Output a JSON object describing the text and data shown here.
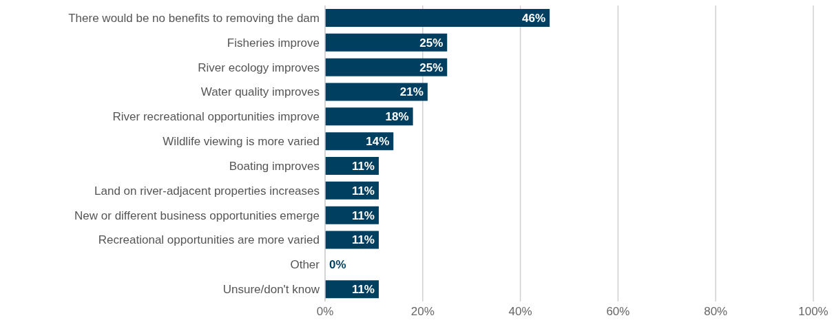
{
  "chart_data": {
    "type": "bar",
    "orientation": "horizontal",
    "categories": [
      "There would be no benefits to removing the dam",
      "Fisheries improve",
      "River ecology improves",
      "Water quality improves",
      "River recreational opportunities improve",
      "Wildlife viewing is more varied",
      "Boating improves",
      "Land on river-adjacent properties increases",
      "New or different business opportunities emerge",
      "Recreational opportunities are more varied",
      "Other",
      "Unsure/don't know"
    ],
    "values": [
      46,
      25,
      25,
      21,
      18,
      14,
      11,
      11,
      11,
      11,
      0,
      11
    ],
    "value_labels": [
      "46%",
      "25%",
      "25%",
      "21%",
      "18%",
      "14%",
      "11%",
      "11%",
      "11%",
      "11%",
      "0%",
      "11%"
    ],
    "color": "#003f5f",
    "xlim": [
      0,
      100
    ],
    "xticks": [
      {
        "value": 0,
        "label": "0%"
      },
      {
        "value": 20,
        "label": "20%"
      },
      {
        "value": 40,
        "label": "40%"
      },
      {
        "value": 60,
        "label": "60%"
      },
      {
        "value": 80,
        "label": "80%"
      },
      {
        "value": 100,
        "label": "100%"
      }
    ],
    "grid": "x",
    "legend": false
  }
}
